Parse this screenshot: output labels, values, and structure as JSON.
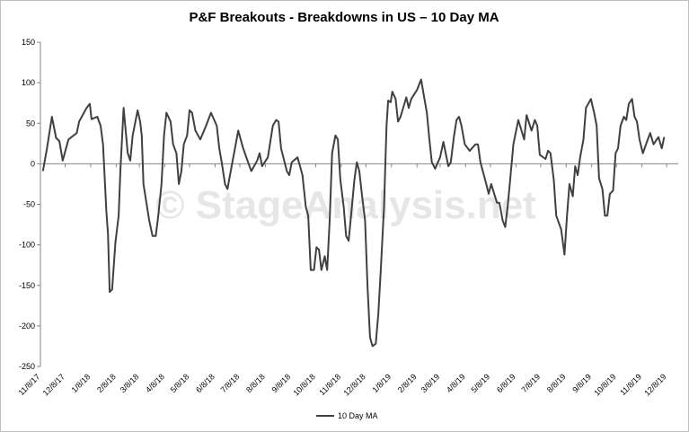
{
  "chart_data": {
    "type": "line",
    "title": "P&F Breakouts - Breakdowns in US – 10 Day MA",
    "watermark": "© StageAnalysis.net",
    "x": [
      "11/11/17",
      "11/16/17",
      "11/22/17",
      "11/27/17",
      "12/1/17",
      "12/5/17",
      "12/12/17",
      "12/22/17",
      "12/25/17",
      "1/3/18",
      "1/7/18",
      "1/9/18",
      "1/16/18",
      "1/20/18",
      "1/23/18",
      "1/27/18",
      "1/29/18",
      "1/31/18",
      "2/3/18",
      "2/7/18",
      "2/11/18",
      "2/13/18",
      "2/17/18",
      "2/22/18",
      "2/25/18",
      "2/28/18",
      "3/6/18",
      "3/9/18",
      "3/11/18",
      "3/13/18",
      "3/20/18",
      "3/24/18",
      "3/28/18",
      "3/31/18",
      "4/4/18",
      "4/7/18",
      "4/10/18",
      "4/15/18",
      "4/18/18",
      "4/22/18",
      "4/25/18",
      "4/28/18",
      "5/1/18",
      "5/5/18",
      "5/8/18",
      "5/11/18",
      "5/15/18",
      "5/21/18",
      "5/28/18",
      "6/3/18",
      "6/10/18",
      "6/13/18",
      "6/16/18",
      "6/20/18",
      "6/23/18",
      "6/29/18",
      "7/3/18",
      "7/6/18",
      "7/12/18",
      "7/19/18",
      "7/22/18",
      "7/29/18",
      "8/1/18",
      "8/4/18",
      "8/11/18",
      "8/17/18",
      "8/21/18",
      "8/24/18",
      "8/27/18",
      "9/3/18",
      "9/6/18",
      "9/9/18",
      "9/16/18",
      "9/19/18",
      "9/22/18",
      "9/26/18",
      "9/29/18",
      "10/2/18",
      "10/6/18",
      "10/9/18",
      "10/12/18",
      "10/15/18",
      "10/19/18",
      "10/22/18",
      "10/25/18",
      "10/28/18",
      "11/1/18",
      "11/4/18",
      "11/7/18",
      "11/11/18",
      "11/14/18",
      "11/17/18",
      "11/20/18",
      "11/24/18",
      "11/27/18",
      "11/30/18",
      "12/3/18",
      "12/7/18",
      "12/10/18",
      "12/13/18",
      "12/16/18",
      "12/20/18",
      "12/23/18",
      "12/26/18",
      "12/30/18",
      "1/2/19",
      "1/4/19",
      "1/7/19",
      "1/9/19",
      "1/13/19",
      "1/16/19",
      "1/19/19",
      "1/26/19",
      "1/29/19",
      "2/1/19",
      "2/8/19",
      "2/13/19",
      "2/17/19",
      "2/20/19",
      "2/23/19",
      "2/26/19",
      "3/2/19",
      "3/8/19",
      "3/12/19",
      "3/18/19",
      "3/21/19",
      "3/25/19",
      "3/28/19",
      "3/31/19",
      "4/3/19",
      "4/7/19",
      "4/13/19",
      "4/20/19",
      "4/23/19",
      "4/26/19",
      "5/3/19",
      "5/6/19",
      "5/9/19",
      "5/16/19",
      "5/19/19",
      "5/23/19",
      "5/26/19",
      "5/29/19",
      "6/1/19",
      "6/5/19",
      "6/11/19",
      "6/18/19",
      "6/21/19",
      "6/27/19",
      "7/1/19",
      "7/4/19",
      "7/7/19",
      "7/14/19",
      "7/17/19",
      "7/20/19",
      "7/24/19",
      "7/27/19",
      "8/2/19",
      "8/6/19",
      "8/9/19",
      "8/12/19",
      "8/16/19",
      "8/19/19",
      "8/22/19",
      "8/25/19",
      "8/29/19",
      "9/1/19",
      "9/7/19",
      "9/11/19",
      "9/14/19",
      "9/17/19",
      "9/21/19",
      "9/24/19",
      "9/27/19",
      "9/30/19",
      "10/4/19",
      "10/7/19",
      "10/10/19",
      "10/13/19",
      "10/17/19",
      "10/20/19",
      "10/23/19",
      "10/27/19",
      "10/30/19",
      "11/2/19",
      "11/5/19",
      "11/9/19",
      "11/15/19",
      "11/18/19",
      "11/22/19",
      "11/28/19",
      "12/2/19",
      "12/5/19"
    ],
    "series": [
      {
        "name": "10 Day MA",
        "color": "#404040",
        "values": [
          -9,
          19,
          58,
          32,
          28,
          4,
          30,
          38,
          52,
          69,
          74,
          55,
          58,
          47,
          24,
          -59,
          -86,
          -158,
          -155,
          -97,
          -64,
          -9,
          69,
          13,
          4,
          35,
          66,
          52,
          35,
          -25,
          -70,
          -89,
          -89,
          -64,
          -25,
          35,
          63,
          52,
          24,
          13,
          -25,
          -9,
          24,
          35,
          66,
          63,
          41,
          30,
          47,
          63,
          47,
          19,
          2,
          -25,
          -31,
          2,
          24,
          41,
          19,
          -1,
          -9,
          4,
          13,
          -3,
          8,
          47,
          54,
          52,
          19,
          -9,
          -14,
          2,
          8,
          -3,
          -14,
          -53,
          -64,
          -131,
          -131,
          -103,
          -106,
          -131,
          -114,
          -131,
          -70,
          13,
          35,
          30,
          -20,
          -53,
          -89,
          -95,
          -64,
          -20,
          2,
          -9,
          -37,
          -70,
          -153,
          -214,
          -225,
          -222,
          -186,
          -131,
          -53,
          47,
          78,
          76,
          89,
          80,
          52,
          58,
          82,
          69,
          80,
          91,
          104,
          80,
          63,
          30,
          2,
          -6,
          8,
          27,
          -3,
          2,
          35,
          54,
          58,
          47,
          24,
          16,
          24,
          24,
          2,
          -25,
          -37,
          -25,
          -48,
          -48,
          -70,
          -78,
          -53,
          -20,
          24,
          54,
          30,
          60,
          41,
          54,
          47,
          11,
          6,
          16,
          13,
          -20,
          -64,
          -81,
          -112,
          -64,
          -25,
          -40,
          -3,
          -14,
          8,
          30,
          69,
          80,
          63,
          47,
          -18,
          -31,
          -64,
          -64,
          -37,
          -33,
          13,
          19,
          47,
          58,
          54,
          74,
          80,
          58,
          52,
          30,
          13,
          30,
          38,
          24,
          33,
          19,
          33
        ]
      }
    ],
    "xlim": [
      "11/8/17",
      "12/22/19"
    ],
    "xticks": [
      "11/8/17",
      "12/8/17",
      "1/8/18",
      "2/8/18",
      "3/8/18",
      "4/8/18",
      "5/8/18",
      "6/8/18",
      "7/8/18",
      "8/8/18",
      "9/8/18",
      "10/8/18",
      "11/8/18",
      "12/8/18",
      "1/8/19",
      "2/8/19",
      "3/8/19",
      "4/8/19",
      "5/8/19",
      "6/8/19",
      "7/8/19",
      "8/8/19",
      "9/8/19",
      "10/8/19",
      "11/8/19",
      "12/8/19"
    ],
    "ylim": [
      -250,
      150
    ],
    "yticks": [
      -250,
      -200,
      -150,
      -100,
      -50,
      0,
      50,
      100,
      150
    ],
    "grid": false,
    "legend": "bottom"
  }
}
